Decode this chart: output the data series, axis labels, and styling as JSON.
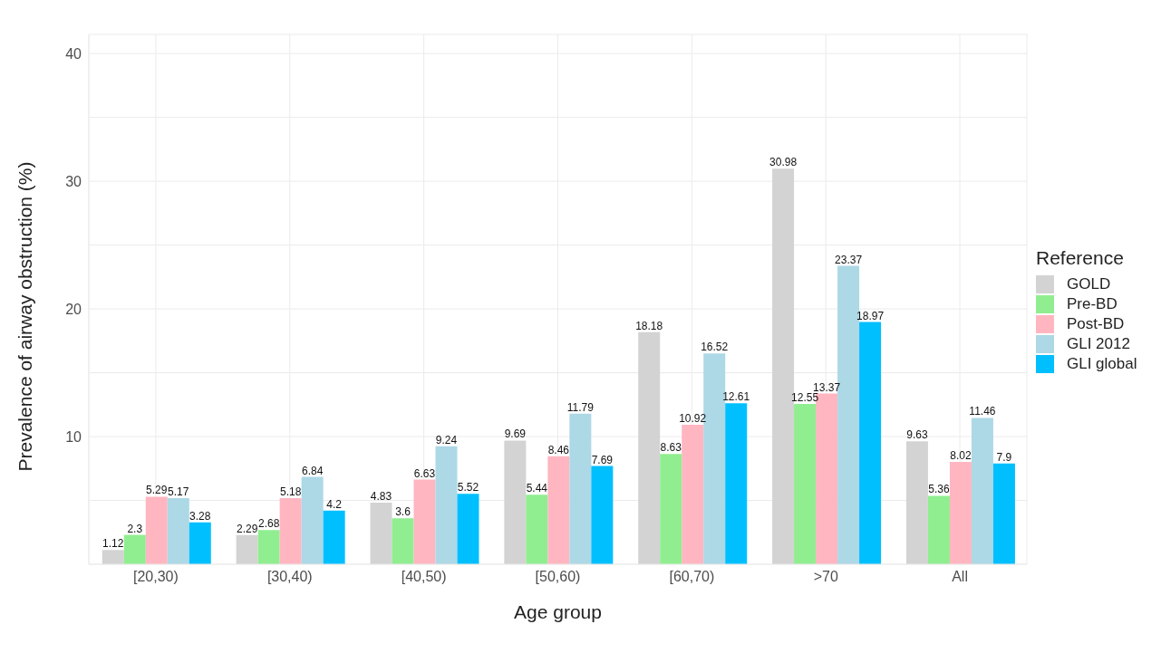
{
  "chart_data": {
    "type": "bar",
    "xlabel": "Age group",
    "ylabel": "Prevalence of airway obstruction (%)",
    "legend_title": "Reference",
    "categories": [
      "[20,30)",
      "[30,40)",
      "[40,50)",
      "[50,60)",
      "[60,70)",
      ">70",
      "All"
    ],
    "series": [
      {
        "name": "GOLD",
        "color": "#d3d3d3",
        "values": [
          1.12,
          2.29,
          4.83,
          9.69,
          18.18,
          30.98,
          9.63
        ]
      },
      {
        "name": "Pre-BD",
        "color": "#90ee90",
        "values": [
          2.3,
          2.68,
          3.6,
          5.44,
          8.63,
          12.55,
          5.36
        ]
      },
      {
        "name": "Post-BD",
        "color": "#ffb6c1",
        "values": [
          5.29,
          5.18,
          6.63,
          8.46,
          10.92,
          13.37,
          8.02
        ]
      },
      {
        "name": "GLI 2012",
        "color": "#add8e6",
        "values": [
          5.17,
          6.84,
          9.24,
          11.79,
          16.52,
          23.37,
          11.46
        ]
      },
      {
        "name": "GLI global",
        "color": "#00bfff",
        "values": [
          3.28,
          4.2,
          5.52,
          7.69,
          12.61,
          18.97,
          7.9
        ]
      }
    ],
    "ylim": [
      0,
      41.5
    ],
    "yticks": [
      {
        "value": 5,
        "label": null
      },
      10,
      {
        "value": 15,
        "label": null
      },
      20,
      {
        "value": 25,
        "label": null
      },
      30,
      {
        "value": 35,
        "label": null
      },
      40
    ],
    "grid": true,
    "legend": "right",
    "data_labels": true
  }
}
